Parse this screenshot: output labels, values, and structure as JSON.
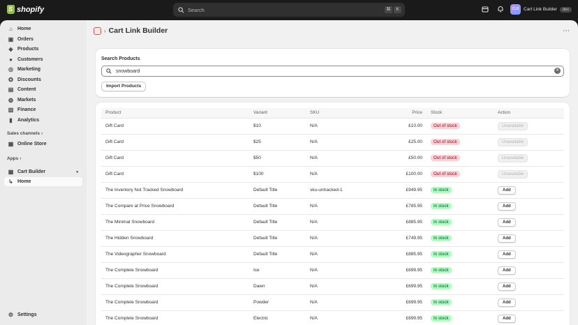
{
  "topbar": {
    "logo_text": "shopify",
    "search_placeholder": "Search",
    "kbd1": "⌘",
    "kbd2": "K",
    "store_name": "Cart Link Builder",
    "avatar_text": "CLB",
    "dev_badge": "dev"
  },
  "sidebar": {
    "items": [
      {
        "label": "Home",
        "icon": "home-icon"
      },
      {
        "label": "Orders",
        "icon": "orders-icon"
      },
      {
        "label": "Products",
        "icon": "tag-icon"
      },
      {
        "label": "Customers",
        "icon": "person-icon"
      },
      {
        "label": "Marketing",
        "icon": "target-icon"
      },
      {
        "label": "Discounts",
        "icon": "discount-icon"
      },
      {
        "label": "Content",
        "icon": "content-icon"
      },
      {
        "label": "Markets",
        "icon": "globe-icon"
      },
      {
        "label": "Finance",
        "icon": "bank-icon"
      },
      {
        "label": "Analytics",
        "icon": "chart-icon"
      }
    ],
    "sales_channels_label": "Sales channels",
    "online_store_label": "Online Store",
    "apps_label": "Apps",
    "app_name": "Cart Builder",
    "app_sub_home": "Home",
    "settings_label": "Settings"
  },
  "main": {
    "page_title": "Cart Link Builder",
    "search_card": {
      "title": "Search Products",
      "query": "snowboard",
      "import_button": "Import Products"
    },
    "table": {
      "headers": {
        "product": "Product",
        "variant": "Variant",
        "sku": "SKU",
        "price": "Price",
        "stock": "Stock",
        "action": "Action"
      },
      "rows": [
        {
          "product": "Gift Card",
          "variant": "$10",
          "sku": "N/A",
          "price": "£10.00",
          "stock": "Out of stock",
          "action": "Unavailable"
        },
        {
          "product": "Gift Card",
          "variant": "$25",
          "sku": "N/A",
          "price": "£25.00",
          "stock": "Out of stock",
          "action": "Unavailable"
        },
        {
          "product": "Gift Card",
          "variant": "$50",
          "sku": "N/A",
          "price": "£50.00",
          "stock": "Out of stock",
          "action": "Unavailable"
        },
        {
          "product": "Gift Card",
          "variant": "$100",
          "sku": "N/A",
          "price": "£100.00",
          "stock": "Out of stock",
          "action": "Unavailable"
        },
        {
          "product": "The Inventory Not Tracked Snowboard",
          "variant": "Default Title",
          "sku": "sku-untracked-1",
          "price": "£949.95",
          "stock": "In stock",
          "action": "Add"
        },
        {
          "product": "The Compare at Price Snowboard",
          "variant": "Default Title",
          "sku": "N/A",
          "price": "£785.95",
          "stock": "In stock",
          "action": "Add"
        },
        {
          "product": "The Minimal Snowboard",
          "variant": "Default Title",
          "sku": "N/A",
          "price": "£885.95",
          "stock": "In stock",
          "action": "Add"
        },
        {
          "product": "The Hidden Snowboard",
          "variant": "Default Title",
          "sku": "N/A",
          "price": "£749.95",
          "stock": "In stock",
          "action": "Add"
        },
        {
          "product": "The Videographer Snowboard",
          "variant": "Default Title",
          "sku": "N/A",
          "price": "£885.95",
          "stock": "In stock",
          "action": "Add"
        },
        {
          "product": "The Complete Snowboard",
          "variant": "Ice",
          "sku": "N/A",
          "price": "£699.95",
          "stock": "In stock",
          "action": "Add"
        },
        {
          "product": "The Complete Snowboard",
          "variant": "Dawn",
          "sku": "N/A",
          "price": "£699.95",
          "stock": "In stock",
          "action": "Add"
        },
        {
          "product": "The Complete Snowboard",
          "variant": "Powder",
          "sku": "N/A",
          "price": "£699.95",
          "stock": "In stock",
          "action": "Add"
        },
        {
          "product": "The Complete Snowboard",
          "variant": "Electric",
          "sku": "N/A",
          "price": "£699.95",
          "stock": "In stock",
          "action": "Add"
        }
      ]
    }
  }
}
